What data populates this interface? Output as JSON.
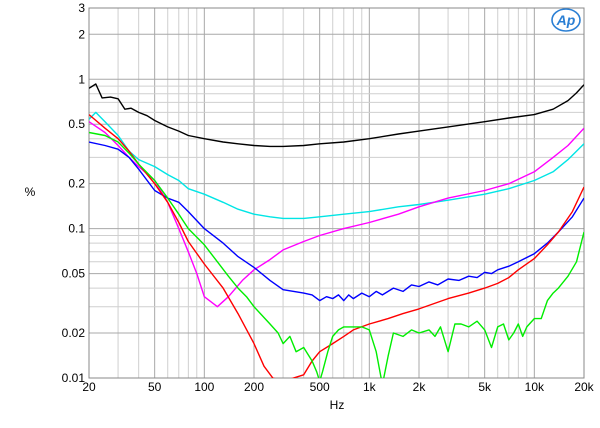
{
  "chart_data": {
    "type": "line",
    "xlabel": "Hz",
    "ylabel": "%",
    "xscale": "log",
    "yscale": "log",
    "xlim": [
      20,
      20000
    ],
    "ylim": [
      0.01,
      3
    ],
    "grid": true,
    "legend": "none",
    "logo_text": "Ap",
    "xticks": [
      {
        "value": 20,
        "label": "20"
      },
      {
        "value": 50,
        "label": "50"
      },
      {
        "value": 100,
        "label": "100"
      },
      {
        "value": 200,
        "label": "200"
      },
      {
        "value": 500,
        "label": "500"
      },
      {
        "value": 1000,
        "label": "1k"
      },
      {
        "value": 2000,
        "label": "2k"
      },
      {
        "value": 5000,
        "label": "5k"
      },
      {
        "value": 10000,
        "label": "10k"
      },
      {
        "value": 20000,
        "label": "20k"
      }
    ],
    "yticks": [
      {
        "value": 3,
        "label": "3"
      },
      {
        "value": 2,
        "label": "2"
      },
      {
        "value": 1,
        "label": "1"
      },
      {
        "value": 0.5,
        "label": "0.5"
      },
      {
        "value": 0.2,
        "label": "0.2"
      },
      {
        "value": 0.1,
        "label": "0.1"
      },
      {
        "value": 0.05,
        "label": "0.05"
      },
      {
        "value": 0.02,
        "label": "0.02"
      },
      {
        "value": 0.01,
        "label": "0.01"
      }
    ],
    "series": [
      {
        "color": "#000000",
        "points": [
          [
            20,
            0.87
          ],
          [
            22,
            0.93
          ],
          [
            24,
            0.75
          ],
          [
            27,
            0.76
          ],
          [
            30,
            0.74
          ],
          [
            33,
            0.63
          ],
          [
            36,
            0.64
          ],
          [
            40,
            0.6
          ],
          [
            45,
            0.57
          ],
          [
            50,
            0.53
          ],
          [
            60,
            0.48
          ],
          [
            70,
            0.45
          ],
          [
            80,
            0.42
          ],
          [
            100,
            0.4
          ],
          [
            130,
            0.38
          ],
          [
            160,
            0.37
          ],
          [
            200,
            0.36
          ],
          [
            250,
            0.355
          ],
          [
            300,
            0.355
          ],
          [
            400,
            0.36
          ],
          [
            500,
            0.37
          ],
          [
            700,
            0.38
          ],
          [
            1000,
            0.4
          ],
          [
            1500,
            0.43
          ],
          [
            2000,
            0.45
          ],
          [
            3000,
            0.48
          ],
          [
            5000,
            0.52
          ],
          [
            7000,
            0.55
          ],
          [
            10000,
            0.58
          ],
          [
            13000,
            0.63
          ],
          [
            16000,
            0.72
          ],
          [
            18000,
            0.81
          ],
          [
            20000,
            0.92
          ]
        ]
      },
      {
        "color": "#00e5e5",
        "points": [
          [
            20,
            0.54
          ],
          [
            22,
            0.6
          ],
          [
            25,
            0.52
          ],
          [
            30,
            0.42
          ],
          [
            35,
            0.33
          ],
          [
            40,
            0.29
          ],
          [
            50,
            0.26
          ],
          [
            60,
            0.23
          ],
          [
            70,
            0.21
          ],
          [
            80,
            0.185
          ],
          [
            100,
            0.17
          ],
          [
            130,
            0.15
          ],
          [
            160,
            0.135
          ],
          [
            200,
            0.125
          ],
          [
            250,
            0.12
          ],
          [
            300,
            0.117
          ],
          [
            400,
            0.117
          ],
          [
            500,
            0.12
          ],
          [
            700,
            0.125
          ],
          [
            1000,
            0.13
          ],
          [
            1500,
            0.14
          ],
          [
            2000,
            0.145
          ],
          [
            3000,
            0.155
          ],
          [
            5000,
            0.17
          ],
          [
            7000,
            0.185
          ],
          [
            10000,
            0.21
          ],
          [
            13000,
            0.24
          ],
          [
            16000,
            0.29
          ],
          [
            20000,
            0.37
          ]
        ]
      },
      {
        "color": "#ff00ff",
        "points": [
          [
            20,
            0.52
          ],
          [
            25,
            0.44
          ],
          [
            30,
            0.36
          ],
          [
            35,
            0.3
          ],
          [
            40,
            0.26
          ],
          [
            50,
            0.21
          ],
          [
            60,
            0.15
          ],
          [
            70,
            0.1
          ],
          [
            80,
            0.07
          ],
          [
            90,
            0.05
          ],
          [
            100,
            0.035
          ],
          [
            120,
            0.03
          ],
          [
            140,
            0.035
          ],
          [
            170,
            0.045
          ],
          [
            200,
            0.053
          ],
          [
            250,
            0.062
          ],
          [
            300,
            0.072
          ],
          [
            400,
            0.082
          ],
          [
            500,
            0.09
          ],
          [
            700,
            0.1
          ],
          [
            1000,
            0.11
          ],
          [
            1500,
            0.125
          ],
          [
            2000,
            0.14
          ],
          [
            3000,
            0.16
          ],
          [
            5000,
            0.18
          ],
          [
            7000,
            0.2
          ],
          [
            10000,
            0.24
          ],
          [
            13000,
            0.3
          ],
          [
            16000,
            0.36
          ],
          [
            20000,
            0.47
          ]
        ]
      },
      {
        "color": "#0000ff",
        "points": [
          [
            20,
            0.38
          ],
          [
            25,
            0.36
          ],
          [
            30,
            0.34
          ],
          [
            35,
            0.3
          ],
          [
            40,
            0.25
          ],
          [
            50,
            0.18
          ],
          [
            60,
            0.16
          ],
          [
            70,
            0.15
          ],
          [
            80,
            0.13
          ],
          [
            100,
            0.1
          ],
          [
            130,
            0.08
          ],
          [
            160,
            0.065
          ],
          [
            200,
            0.055
          ],
          [
            250,
            0.045
          ],
          [
            300,
            0.039
          ],
          [
            400,
            0.037
          ],
          [
            450,
            0.036
          ],
          [
            500,
            0.033
          ],
          [
            550,
            0.035
          ],
          [
            600,
            0.034
          ],
          [
            650,
            0.036
          ],
          [
            700,
            0.033
          ],
          [
            750,
            0.036
          ],
          [
            800,
            0.034
          ],
          [
            900,
            0.037
          ],
          [
            1000,
            0.035
          ],
          [
            1100,
            0.038
          ],
          [
            1200,
            0.036
          ],
          [
            1400,
            0.04
          ],
          [
            1600,
            0.038
          ],
          [
            1800,
            0.042
          ],
          [
            2000,
            0.041
          ],
          [
            2300,
            0.044
          ],
          [
            2600,
            0.042
          ],
          [
            3000,
            0.046
          ],
          [
            3500,
            0.045
          ],
          [
            4000,
            0.048
          ],
          [
            4500,
            0.047
          ],
          [
            5000,
            0.051
          ],
          [
            5500,
            0.05
          ],
          [
            6000,
            0.053
          ],
          [
            7000,
            0.056
          ],
          [
            8000,
            0.06
          ],
          [
            10000,
            0.068
          ],
          [
            12000,
            0.08
          ],
          [
            14000,
            0.095
          ],
          [
            17000,
            0.12
          ],
          [
            20000,
            0.16
          ]
        ]
      },
      {
        "color": "#ff0000",
        "points": [
          [
            20,
            0.58
          ],
          [
            25,
            0.47
          ],
          [
            30,
            0.4
          ],
          [
            35,
            0.33
          ],
          [
            40,
            0.27
          ],
          [
            50,
            0.2
          ],
          [
            60,
            0.15
          ],
          [
            70,
            0.11
          ],
          [
            80,
            0.082
          ],
          [
            100,
            0.058
          ],
          [
            130,
            0.04
          ],
          [
            160,
            0.027
          ],
          [
            200,
            0.017
          ],
          [
            230,
            0.012
          ],
          [
            260,
            0.01
          ],
          [
            300,
            0.0095
          ],
          [
            400,
            0.0105
          ],
          [
            450,
            0.013
          ],
          [
            500,
            0.015
          ],
          [
            600,
            0.017
          ],
          [
            700,
            0.019
          ],
          [
            800,
            0.021
          ],
          [
            1000,
            0.023
          ],
          [
            1300,
            0.025
          ],
          [
            1600,
            0.027
          ],
          [
            2000,
            0.029
          ],
          [
            3000,
            0.034
          ],
          [
            4000,
            0.037
          ],
          [
            5000,
            0.04
          ],
          [
            6000,
            0.043
          ],
          [
            7000,
            0.047
          ],
          [
            8000,
            0.053
          ],
          [
            10000,
            0.063
          ],
          [
            12000,
            0.078
          ],
          [
            14000,
            0.095
          ],
          [
            17000,
            0.13
          ],
          [
            20000,
            0.19
          ]
        ]
      },
      {
        "color": "#00ee00",
        "points": [
          [
            20,
            0.44
          ],
          [
            25,
            0.42
          ],
          [
            30,
            0.38
          ],
          [
            35,
            0.32
          ],
          [
            40,
            0.27
          ],
          [
            50,
            0.21
          ],
          [
            60,
            0.16
          ],
          [
            70,
            0.125
          ],
          [
            80,
            0.1
          ],
          [
            100,
            0.078
          ],
          [
            120,
            0.06
          ],
          [
            140,
            0.048
          ],
          [
            160,
            0.04
          ],
          [
            180,
            0.035
          ],
          [
            200,
            0.03
          ],
          [
            250,
            0.023
          ],
          [
            280,
            0.02
          ],
          [
            300,
            0.017
          ],
          [
            330,
            0.019
          ],
          [
            360,
            0.015
          ],
          [
            400,
            0.016
          ],
          [
            450,
            0.013
          ],
          [
            480,
            0.011
          ],
          [
            500,
            0.0095
          ],
          [
            520,
            0.011
          ],
          [
            560,
            0.015
          ],
          [
            600,
            0.019
          ],
          [
            650,
            0.021
          ],
          [
            700,
            0.022
          ],
          [
            800,
            0.022
          ],
          [
            900,
            0.022
          ],
          [
            1000,
            0.021
          ],
          [
            1100,
            0.015
          ],
          [
            1200,
            0.009
          ],
          [
            1300,
            0.014
          ],
          [
            1400,
            0.02
          ],
          [
            1600,
            0.019
          ],
          [
            1800,
            0.021
          ],
          [
            2000,
            0.02
          ],
          [
            2300,
            0.021
          ],
          [
            2500,
            0.019
          ],
          [
            2700,
            0.022
          ],
          [
            3000,
            0.015
          ],
          [
            3300,
            0.023
          ],
          [
            3600,
            0.023
          ],
          [
            4000,
            0.022
          ],
          [
            4500,
            0.024
          ],
          [
            5000,
            0.021
          ],
          [
            5500,
            0.016
          ],
          [
            6000,
            0.022
          ],
          [
            6500,
            0.023
          ],
          [
            7000,
            0.018
          ],
          [
            7500,
            0.02
          ],
          [
            8000,
            0.023
          ],
          [
            8500,
            0.019
          ],
          [
            9000,
            0.022
          ],
          [
            10000,
            0.025
          ],
          [
            11000,
            0.025
          ],
          [
            12000,
            0.033
          ],
          [
            13000,
            0.037
          ],
          [
            14000,
            0.04
          ],
          [
            16000,
            0.048
          ],
          [
            18000,
            0.06
          ],
          [
            20000,
            0.095
          ]
        ]
      }
    ]
  }
}
